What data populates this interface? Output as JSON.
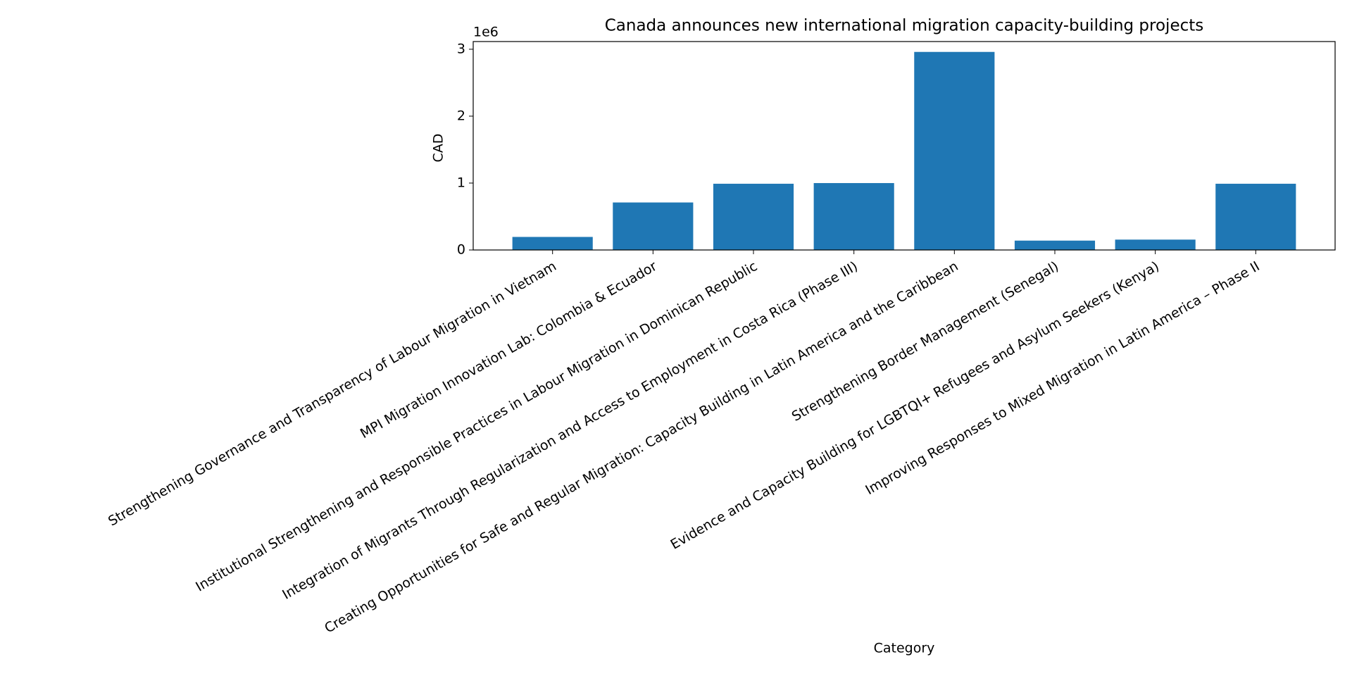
{
  "chart_data": {
    "type": "bar",
    "title": "Canada announces new international migration capacity-building projects",
    "x_label": "Category",
    "y_label": "CAD",
    "y_offset_label": "1e6",
    "categories": [
      "Strengthening Governance and Transparency of Labour Migration in Vietnam",
      "MPI Migration Innovation Lab: Colombia & Ecuador",
      "Institutional Strengthening and Responsible Practices in Labour Migration in Dominican Republic",
      "Integration of Migrants Through Regularization and Access to Employment in Costa Rica (Phase III)",
      "Creating Opportunities for Safe and Regular Migration: Capacity Building in Latin America and the Caribbean",
      "Strengthening Border Management (Senegal)",
      "Evidence and Capacity Building for LGBTQI+ Refugees and Asylum Seekers (Kenya)",
      "Improving Responses to Mixed Migration in Latin America – Phase II"
    ],
    "values": [
      195000,
      710000,
      990000,
      1000000,
      2960000,
      140000,
      155000,
      990000
    ],
    "color": "#1f77b4",
    "ylim": [
      0,
      3115000
    ],
    "yticks": [
      0,
      {
        "value": 1000000,
        "label": "1"
      },
      {
        "value": 2000000,
        "label": "2"
      },
      {
        "value": 3000000,
        "label": "3"
      }
    ],
    "grid": false
  }
}
